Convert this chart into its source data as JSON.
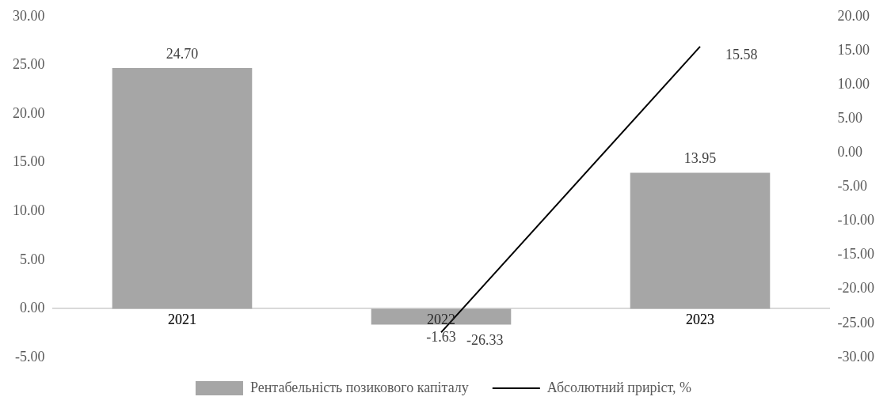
{
  "chart_data": {
    "type": "bar",
    "categories": [
      "2021",
      "2022",
      "2023"
    ],
    "series": [
      {
        "name": "Рентабельність позикового капіталу",
        "color": "#a6a6a6",
        "values": [
          24.7,
          -1.63,
          13.95
        ],
        "value_labels": [
          "24.70",
          "-1.63",
          "13.95"
        ]
      },
      {
        "type": "line",
        "axis": "y2",
        "name": "Абсолютний приріст, %",
        "color": "#000000",
        "values": [
          null,
          -26.33,
          15.58
        ],
        "value_labels": [
          null,
          "-26.33",
          "15.58"
        ]
      }
    ],
    "ylim": [
      -5,
      30
    ],
    "yticks": [
      {
        "value": -5,
        "label": "-5.00"
      },
      {
        "value": 0,
        "label": "0.00"
      },
      {
        "value": 5,
        "label": "5.00"
      },
      {
        "value": 10,
        "label": "10.00"
      },
      {
        "value": 15,
        "label": "15.00"
      },
      {
        "value": 20,
        "label": "20.00"
      },
      {
        "value": 25,
        "label": "25.00"
      },
      {
        "value": 30,
        "label": "30.00"
      }
    ],
    "y2lim": [
      -30,
      20
    ],
    "y2ticks": [
      {
        "value": -30,
        "label": "-30.00"
      },
      {
        "value": -25,
        "label": "-25.00"
      },
      {
        "value": -20,
        "label": "-20.00"
      },
      {
        "value": -15,
        "label": "-15.00"
      },
      {
        "value": -10,
        "label": "-10.00"
      },
      {
        "value": -5,
        "label": "-5.00"
      },
      {
        "value": 0,
        "label": "0.00"
      },
      {
        "value": 5,
        "label": "5.00"
      },
      {
        "value": 10,
        "label": "10.00"
      },
      {
        "value": 15,
        "label": "15.00"
      },
      {
        "value": 20,
        "label": "20.00"
      }
    ],
    "grid": false,
    "legend": "bottom",
    "marker": "none",
    "line_style": "solid"
  }
}
